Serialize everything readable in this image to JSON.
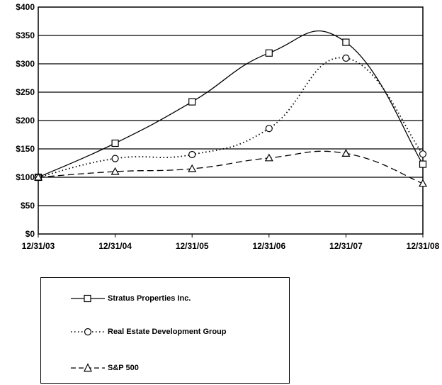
{
  "chart_data": {
    "type": "line",
    "categories": [
      "12/31/03",
      "12/31/04",
      "12/31/05",
      "12/31/06",
      "12/31/07",
      "12/31/08"
    ],
    "series": [
      {
        "name": "Stratus Properties Inc.",
        "values": [
          100,
          160,
          233,
          319,
          338,
          123
        ],
        "marker": "square",
        "dash": "solid"
      },
      {
        "name": "Real Estate Development Group",
        "values": [
          100,
          133,
          140,
          186,
          310,
          141
        ],
        "marker": "circle",
        "dash": "dotted"
      },
      {
        "name": "S&P 500",
        "values": [
          100,
          110,
          115,
          134,
          142,
          89
        ],
        "marker": "triangle",
        "dash": "dashed"
      }
    ],
    "yticks": [
      "$0",
      "$50",
      "$100",
      "$150",
      "$200",
      "$250",
      "$300",
      "$350",
      "$400"
    ],
    "ylim": [
      0,
      400
    ],
    "grid": true,
    "legend_position": "bottom"
  }
}
